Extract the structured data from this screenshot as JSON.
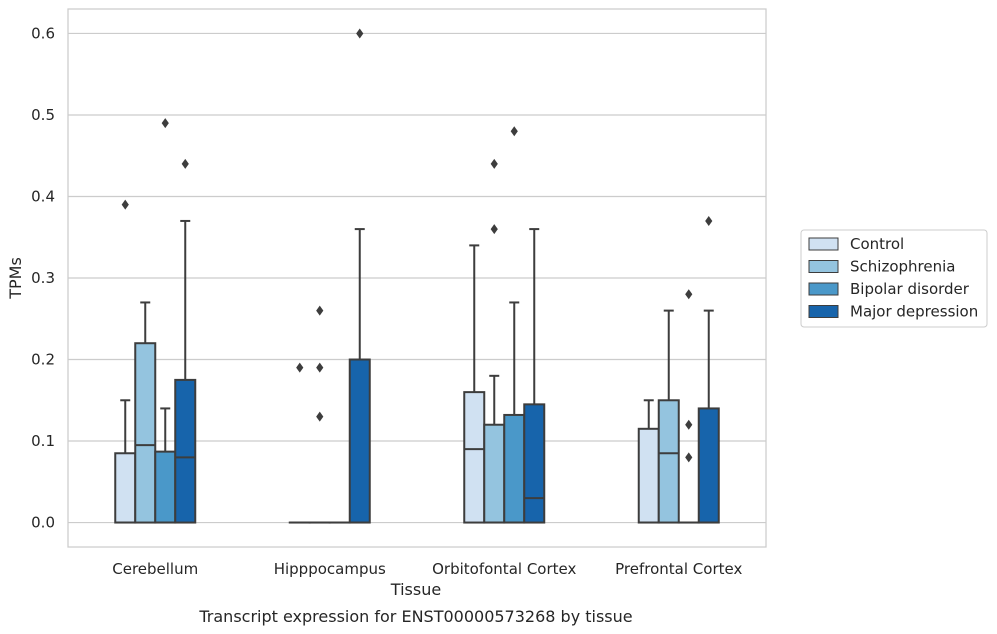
{
  "chart_data": {
    "type": "box",
    "title": "Transcript expression for ENST00000573268 by tissue",
    "xlabel": "Tissue",
    "ylabel": "TPMs",
    "ylim": [
      -0.03,
      0.63
    ],
    "yticks": [
      "0.0",
      "0.1",
      "0.2",
      "0.3",
      "0.4",
      "0.5",
      "0.6"
    ],
    "categories": [
      "Cerebellum",
      "Hipppocampus",
      "Orbitofontal Cortex",
      "Prefrontal Cortex"
    ],
    "grid": true,
    "legend_position": "right",
    "series": [
      {
        "name": "Control",
        "color": "#d0e1f2",
        "boxes": [
          {
            "q1": 0,
            "median": 0,
            "q3": 0.085,
            "whisker_low": 0,
            "whisker_high": 0.15,
            "outliers": [
              0.39
            ]
          },
          {
            "q1": 0,
            "median": 0,
            "q3": 0,
            "whisker_low": 0,
            "whisker_high": 0,
            "outliers": [
              0.19
            ]
          },
          {
            "q1": 0,
            "median": 0.09,
            "q3": 0.16,
            "whisker_low": 0,
            "whisker_high": 0.34,
            "outliers": []
          },
          {
            "q1": 0,
            "median": 0,
            "q3": 0.115,
            "whisker_low": 0,
            "whisker_high": 0.15,
            "outliers": []
          }
        ]
      },
      {
        "name": "Schizophrenia",
        "color": "#94c4df",
        "boxes": [
          {
            "q1": 0,
            "median": 0.095,
            "q3": 0.22,
            "whisker_low": 0,
            "whisker_high": 0.27,
            "outliers": []
          },
          {
            "q1": 0,
            "median": 0,
            "q3": 0,
            "whisker_low": 0,
            "whisker_high": 0,
            "outliers": [
              0.13,
              0.19,
              0.26
            ]
          },
          {
            "q1": 0,
            "median": 0,
            "q3": 0.12,
            "whisker_low": 0,
            "whisker_high": 0.18,
            "outliers": [
              0.36,
              0.44
            ]
          },
          {
            "q1": 0,
            "median": 0.085,
            "q3": 0.15,
            "whisker_low": 0,
            "whisker_high": 0.26,
            "outliers": []
          }
        ]
      },
      {
        "name": "Bipolar disorder",
        "color": "#4a98c9",
        "boxes": [
          {
            "q1": 0,
            "median": 0,
            "q3": 0.087,
            "whisker_low": 0,
            "whisker_high": 0.14,
            "outliers": [
              0.49
            ]
          },
          {
            "q1": 0,
            "median": 0,
            "q3": 0,
            "whisker_low": 0,
            "whisker_high": 0,
            "outliers": []
          },
          {
            "q1": 0,
            "median": 0,
            "q3": 0.132,
            "whisker_low": 0,
            "whisker_high": 0.27,
            "outliers": [
              0.48
            ]
          },
          {
            "q1": 0,
            "median": 0,
            "q3": 0,
            "whisker_low": 0,
            "whisker_high": 0,
            "outliers": [
              0.08,
              0.12,
              0.28
            ]
          }
        ]
      },
      {
        "name": "Major depression",
        "color": "#1764ab",
        "boxes": [
          {
            "q1": 0,
            "median": 0.08,
            "q3": 0.175,
            "whisker_low": 0,
            "whisker_high": 0.37,
            "outliers": [
              0.44
            ]
          },
          {
            "q1": 0,
            "median": 0,
            "q3": 0.2,
            "whisker_low": 0,
            "whisker_high": 0.36,
            "outliers": [
              0.6
            ]
          },
          {
            "q1": 0,
            "median": 0.03,
            "q3": 0.145,
            "whisker_low": 0,
            "whisker_high": 0.36,
            "outliers": []
          },
          {
            "q1": 0,
            "median": 0,
            "q3": 0.14,
            "whisker_low": 0,
            "whisker_high": 0.26,
            "outliers": [
              0.37
            ]
          }
        ]
      }
    ]
  }
}
